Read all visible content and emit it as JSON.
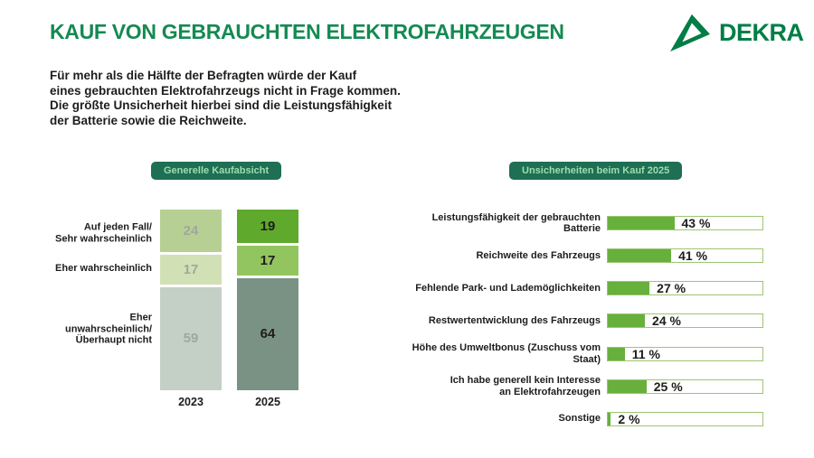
{
  "header": {
    "title": "KAUF VON GEBRAUCHTEN ELEKTROFAHRZEUGEN",
    "logo_text": "DEKRA"
  },
  "intro": {
    "text": "Für mehr als die Hälfte der Befragten würde der Kauf\neines gebrauchten Elektrofahrzeugs nicht in Frage kommen.\nDie größte Unsicherheit hierbei sind die Leistungsfähigkeit\nder Batterie sowie die Reichweite."
  },
  "colors": {
    "title_green": "#148a52",
    "logo_green": "#017e45",
    "badge_background": "#1e6f54",
    "badge_text": "#9edcb0",
    "text_dark": "#1d1d1b",
    "muted_value_text": "#9fa89f"
  },
  "left_chart": {
    "badge": "Generelle Kaufabsicht",
    "row_labels": [
      "Auf jeden Fall/\nSehr wahrscheinlich",
      "Eher wahrscheinlich",
      "Eher unwahrscheinlich/\nÜberhaupt nicht"
    ],
    "columns": [
      {
        "year": "2023",
        "values": [
          24,
          17,
          59
        ],
        "colors": [
          "#b6d093",
          "#d2e1b5",
          "#c4cfc5"
        ],
        "text_color": "#9fa89f"
      },
      {
        "year": "2025",
        "values": [
          19,
          17,
          64
        ],
        "colors": [
          "#5fa92c",
          "#92c55f",
          "#7a9284"
        ],
        "text_color": "#1d1d1b"
      }
    ]
  },
  "right_chart": {
    "badge": "Unsicherheiten beim Kauf 2025",
    "bar_color": "#67b03b",
    "track_border": "#9cc573",
    "items": [
      {
        "label": "Leistungsfähigkeit der gebrauchten Batterie",
        "value": 43,
        "value_label": "43 %"
      },
      {
        "label": "Reichweite des Fahrzeugs",
        "value": 41,
        "value_label": "41 %"
      },
      {
        "label": "Fehlende Park- und Lademöglichkeiten",
        "value": 27,
        "value_label": "27 %"
      },
      {
        "label": "Restwertentwicklung des Fahrzeugs",
        "value": 24,
        "value_label": "24 %"
      },
      {
        "label": "Höhe des Umweltbonus (Zuschuss vom Staat)",
        "value": 11,
        "value_label": "11 %"
      },
      {
        "label": "Ich habe generell kein Interesse\nan Elektrofahrzeugen",
        "value": 25,
        "value_label": "25 %"
      },
      {
        "label": "Sonstige",
        "value": 2,
        "value_label": "2 %"
      }
    ]
  },
  "chart_data": [
    {
      "type": "bar",
      "stacked": true,
      "title": "Generelle Kaufabsicht",
      "categories": [
        "2023",
        "2025"
      ],
      "series": [
        {
          "name": "Auf jeden Fall/Sehr wahrscheinlich",
          "values": [
            24,
            19
          ]
        },
        {
          "name": "Eher wahrscheinlich",
          "values": [
            17,
            17
          ]
        },
        {
          "name": "Eher unwahrscheinlich/Überhaupt nicht",
          "values": [
            59,
            64
          ]
        }
      ],
      "ylim": [
        0,
        100
      ],
      "grid": false,
      "legend_position": "left-as-row-labels"
    },
    {
      "type": "bar",
      "orientation": "horizontal",
      "title": "Unsicherheiten beim Kauf 2025",
      "categories": [
        "Leistungsfähigkeit der gebrauchten Batterie",
        "Reichweite des Fahrzeugs",
        "Fehlende Park- und Lademöglichkeiten",
        "Restwertentwicklung des Fahrzeugs",
        "Höhe des Umweltbonus (Zuschuss vom Staat)",
        "Ich habe generell kein Interesse an Elektrofahrzeugen",
        "Sonstige"
      ],
      "values": [
        43,
        41,
        27,
        24,
        11,
        25,
        2
      ],
      "value_suffix": " %",
      "xlim": [
        0,
        100
      ],
      "grid": false
    }
  ]
}
